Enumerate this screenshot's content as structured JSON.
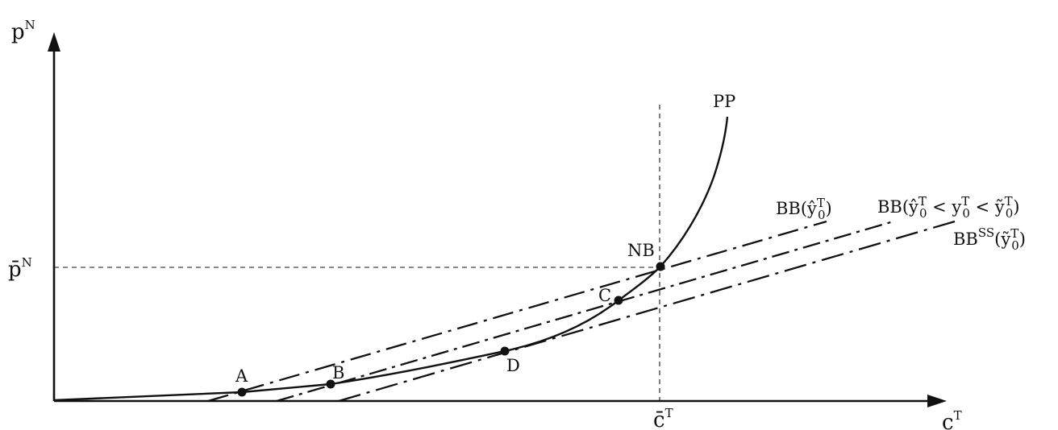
{
  "axes": {
    "y_label": "p",
    "y_label_sup": "N",
    "x_label": "c",
    "x_label_sup": "T",
    "y_ref_label": "p̄",
    "y_ref_label_sup": "N",
    "x_ref_label": "c̄",
    "x_ref_label_sup": "T"
  },
  "curves": {
    "pp_label": "PP",
    "bb1_label": "BB(ŷ",
    "bb1_sup": "T",
    "bb1_sub": "0",
    "bb1_tail": ")",
    "bb2_label": "BB(ŷ",
    "bb2_sup": "T",
    "bb2_sub": "0",
    "bb2_mid1": " < y",
    "bb2_mid1_sup": "T",
    "bb2_mid1_sub": "0",
    "bb2_mid2": " < ỹ",
    "bb2_mid2_sup": "T",
    "bb2_mid2_sub": "0",
    "bb2_tail": ")",
    "bb3_label": "BB",
    "bb3_sup": "SS",
    "bb3_paren": "(ỹ",
    "bb3_paren_sup": "T",
    "bb3_paren_sub": "0",
    "bb3_tail": ")"
  },
  "points": {
    "a": "A",
    "b": "B",
    "c": "C",
    "d": "D",
    "nb": "NB"
  },
  "colors": {
    "ink": "#111111",
    "background": "#ffffff"
  }
}
